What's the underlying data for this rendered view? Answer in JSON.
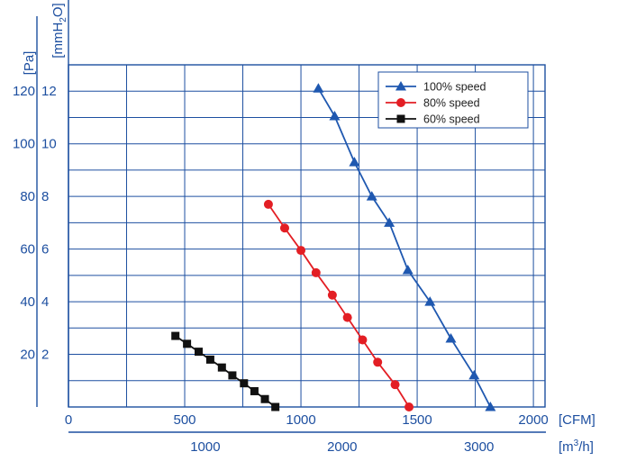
{
  "chart_data": {
    "type": "line",
    "x_top": {
      "unit_label": "[CFM]",
      "ticks": [
        0,
        500,
        1000,
        1500,
        2000
      ],
      "xlim": [
        0,
        2050
      ]
    },
    "x_bottom": {
      "unit_label_base": "[m",
      "unit_label_sup": "3",
      "unit_label_tail": "/h]",
      "ticks": [
        1000,
        2000,
        3000
      ],
      "cfm_per_unit": 0.5886
    },
    "y_left": {
      "unit_label": "[Pa]",
      "ticks": [
        20,
        40,
        60,
        80,
        100,
        120
      ]
    },
    "y_inner": {
      "unit_label_base": "[mmH",
      "unit_label_sub": "2",
      "unit_label_tail": "O]",
      "ticks": [
        2,
        4,
        6,
        8,
        10,
        12
      ],
      "ylim": [
        0,
        13
      ]
    },
    "grid": true,
    "legend": "top-right",
    "series": [
      {
        "name": "100% speed",
        "color": "#1f58b0",
        "marker": "triangle",
        "x": [
          1075,
          1145,
          1230,
          1305,
          1380,
          1460,
          1555,
          1645,
          1745,
          1815
        ],
        "y": [
          12.1,
          11.05,
          9.3,
          8.0,
          7.0,
          5.2,
          4.0,
          2.6,
          1.2,
          0.0
        ]
      },
      {
        "name": "80% speed",
        "color": "#e31e24",
        "marker": "circle",
        "x": [
          860,
          930,
          1000,
          1065,
          1135,
          1200,
          1265,
          1330,
          1405,
          1465
        ],
        "y": [
          7.7,
          6.8,
          5.95,
          5.1,
          4.25,
          3.4,
          2.55,
          1.7,
          0.85,
          0.0
        ]
      },
      {
        "name": "60% speed",
        "color": "#111111",
        "marker": "square",
        "x": [
          460,
          510,
          560,
          610,
          660,
          705,
          755,
          800,
          845,
          890
        ],
        "y": [
          2.7,
          2.4,
          2.1,
          1.8,
          1.5,
          1.2,
          0.9,
          0.6,
          0.3,
          0.0
        ]
      }
    ]
  }
}
